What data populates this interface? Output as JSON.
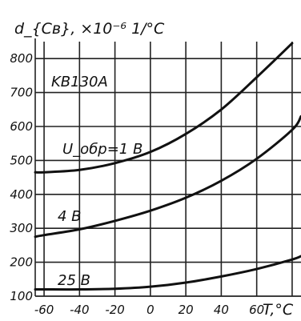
{
  "chart_data": {
    "type": "line",
    "model_label": "KB130A",
    "ylabel": "d_{Cв}, ×10⁻⁶ 1/°C",
    "xlabel": "T,°C",
    "x_ticks": [
      "-60",
      "-40",
      "-20",
      "0",
      "20",
      "40",
      "60"
    ],
    "y_ticks": [
      "100",
      "200",
      "300",
      "400",
      "500",
      "600",
      "700",
      "800"
    ],
    "xlim": [
      -65,
      85
    ],
    "ylim": [
      100,
      850
    ],
    "grid": true,
    "series": [
      {
        "name": "U_обр=1 В",
        "x": [
          -65,
          -60,
          -40,
          -20,
          0,
          20,
          40,
          60,
          80
        ],
        "y": [
          465,
          465,
          472,
          492,
          525,
          578,
          650,
          745,
          845
        ]
      },
      {
        "name": "4 В",
        "x": [
          -65,
          -60,
          -40,
          -20,
          0,
          20,
          40,
          60,
          80,
          85
        ],
        "y": [
          275,
          280,
          297,
          322,
          352,
          390,
          440,
          505,
          590,
          630
        ]
      },
      {
        "name": "25 В",
        "x": [
          -65,
          -60,
          -40,
          -20,
          0,
          20,
          40,
          60,
          80,
          85
        ],
        "y": [
          120,
          120,
          120,
          122,
          128,
          140,
          158,
          180,
          208,
          218
        ]
      }
    ]
  }
}
